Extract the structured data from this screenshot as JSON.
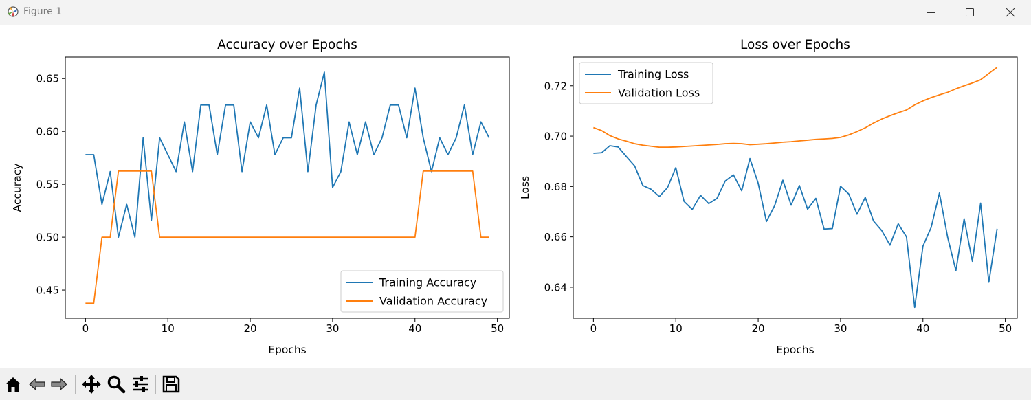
{
  "window": {
    "title": "Figure 1"
  },
  "toolbar": {
    "buttons": [
      {
        "name": "home-button",
        "icon": "home-icon"
      },
      {
        "name": "back-button",
        "icon": "back-arrow-icon"
      },
      {
        "name": "forward-button",
        "icon": "forward-arrow-icon"
      },
      {
        "name": "pan-button",
        "icon": "move-icon"
      },
      {
        "name": "zoom-button",
        "icon": "zoom-icon"
      },
      {
        "name": "configure-subplots-button",
        "icon": "sliders-icon"
      },
      {
        "name": "save-button",
        "icon": "save-icon"
      }
    ]
  },
  "colors": {
    "training": "#1f77b4",
    "validation": "#ff7f0e"
  },
  "chart_data": [
    {
      "type": "line",
      "title": "Accuracy over Epochs",
      "xlabel": "Epochs",
      "ylabel": "Accuracy",
      "xlim": [
        -2.45,
        51.45
      ],
      "ylim": [
        0.4234,
        0.6703
      ],
      "xticks": [
        0,
        10,
        20,
        30,
        40,
        50
      ],
      "xtick_labels": [
        "0",
        "10",
        "20",
        "30",
        "40",
        "50"
      ],
      "yticks": [
        0.45,
        0.5,
        0.55,
        0.6,
        0.65
      ],
      "ytick_labels": [
        "0.45",
        "0.50",
        "0.55",
        "0.60",
        "0.65"
      ],
      "legend_position": "lower right",
      "grid": false,
      "x": [
        0,
        1,
        2,
        3,
        4,
        5,
        6,
        7,
        8,
        9,
        10,
        11,
        12,
        13,
        14,
        15,
        16,
        17,
        18,
        19,
        20,
        21,
        22,
        23,
        24,
        25,
        26,
        27,
        28,
        29,
        30,
        31,
        32,
        33,
        34,
        35,
        36,
        37,
        38,
        39,
        40,
        41,
        42,
        43,
        44,
        45,
        46,
        47,
        48,
        49
      ],
      "series": [
        {
          "name": "Training Accuracy",
          "values": [
            0.578,
            0.578,
            0.531,
            0.562,
            0.5,
            0.531,
            0.5,
            0.594,
            0.516,
            0.594,
            0.578,
            0.562,
            0.609,
            0.562,
            0.625,
            0.625,
            0.578,
            0.625,
            0.625,
            0.562,
            0.609,
            0.594,
            0.625,
            0.578,
            0.594,
            0.594,
            0.641,
            0.562,
            0.625,
            0.656,
            0.547,
            0.562,
            0.609,
            0.578,
            0.609,
            0.578,
            0.594,
            0.625,
            0.625,
            0.594,
            0.641,
            0.594,
            0.562,
            0.594,
            0.578,
            0.594,
            0.625,
            0.578,
            0.609,
            0.594
          ]
        },
        {
          "name": "Validation Accuracy",
          "values": [
            0.4375,
            0.4375,
            0.5,
            0.5,
            0.5625,
            0.5625,
            0.5625,
            0.5625,
            0.5625,
            0.5,
            0.5,
            0.5,
            0.5,
            0.5,
            0.5,
            0.5,
            0.5,
            0.5,
            0.5,
            0.5,
            0.5,
            0.5,
            0.5,
            0.5,
            0.5,
            0.5,
            0.5,
            0.5,
            0.5,
            0.5,
            0.5,
            0.5,
            0.5,
            0.5,
            0.5,
            0.5,
            0.5,
            0.5,
            0.5,
            0.5,
            0.5,
            0.5625,
            0.5625,
            0.5625,
            0.5625,
            0.5625,
            0.5625,
            0.5625,
            0.5,
            0.5
          ]
        }
      ]
    },
    {
      "type": "line",
      "title": "Loss over Epochs",
      "xlabel": "Epochs",
      "ylabel": "Loss",
      "xlim": [
        -2.45,
        51.45
      ],
      "ylim": [
        0.6277,
        0.7314
      ],
      "xticks": [
        0,
        10,
        20,
        30,
        40,
        50
      ],
      "xtick_labels": [
        "0",
        "10",
        "20",
        "30",
        "40",
        "50"
      ],
      "yticks": [
        0.64,
        0.66,
        0.68,
        0.7,
        0.72
      ],
      "ytick_labels": [
        "0.64",
        "0.66",
        "0.68",
        "0.70",
        "0.72"
      ],
      "legend_position": "upper left",
      "grid": false,
      "x": [
        0,
        1,
        2,
        3,
        4,
        5,
        6,
        7,
        8,
        9,
        10,
        11,
        12,
        13,
        14,
        15,
        16,
        17,
        18,
        19,
        20,
        21,
        22,
        23,
        24,
        25,
        26,
        27,
        28,
        29,
        30,
        31,
        32,
        33,
        34,
        35,
        36,
        37,
        38,
        39,
        40,
        41,
        42,
        43,
        44,
        45,
        46,
        47,
        48,
        49
      ],
      "series": [
        {
          "name": "Training Loss",
          "values": [
            0.6932,
            0.6934,
            0.6962,
            0.6957,
            0.6919,
            0.6882,
            0.6804,
            0.6789,
            0.676,
            0.6796,
            0.6875,
            0.6741,
            0.6709,
            0.6765,
            0.6732,
            0.6753,
            0.6822,
            0.6846,
            0.6783,
            0.6911,
            0.6813,
            0.6661,
            0.6724,
            0.6825,
            0.6726,
            0.6804,
            0.671,
            0.6753,
            0.6631,
            0.6633,
            0.6801,
            0.677,
            0.669,
            0.6757,
            0.6663,
            0.6625,
            0.6567,
            0.6652,
            0.66,
            0.632,
            0.6563,
            0.6638,
            0.6774,
            0.6598,
            0.6466,
            0.6672,
            0.6503,
            0.6734,
            0.642,
            0.6632
          ]
        },
        {
          "name": "Validation Loss",
          "values": [
            0.7034,
            0.7022,
            0.7002,
            0.6989,
            0.698,
            0.697,
            0.6964,
            0.696,
            0.6956,
            0.6956,
            0.6957,
            0.6959,
            0.6961,
            0.6963,
            0.6965,
            0.6967,
            0.697,
            0.6971,
            0.697,
            0.6966,
            0.6968,
            0.697,
            0.6973,
            0.6976,
            0.6978,
            0.6981,
            0.6984,
            0.6987,
            0.6989,
            0.6991,
            0.6995,
            0.7005,
            0.7018,
            0.7033,
            0.7052,
            0.7068,
            0.7081,
            0.7093,
            0.7104,
            0.7124,
            0.714,
            0.7153,
            0.7164,
            0.7174,
            0.7188,
            0.72,
            0.7211,
            0.7224,
            0.7249,
            0.7273
          ]
        }
      ]
    }
  ]
}
